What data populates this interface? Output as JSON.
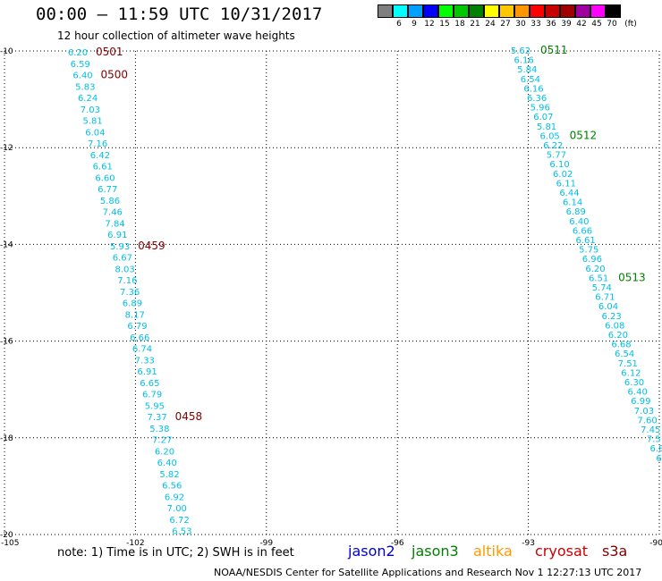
{
  "header": {
    "title": "00:00 — 11:59 UTC 10/31/2017",
    "subtitle": "12 hour collection of altimeter wave heights"
  },
  "colorbar": {
    "unit": "(ft)",
    "bins": [
      {
        "label": "3",
        "color": "#7f7f7f"
      },
      {
        "label": "6",
        "color": "#00ffff"
      },
      {
        "label": "9",
        "color": "#00a0ff"
      },
      {
        "label": "12",
        "color": "#0000ff"
      },
      {
        "label": "15",
        "color": "#00ff00"
      },
      {
        "label": "18",
        "color": "#00c800"
      },
      {
        "label": "21",
        "color": "#008200"
      },
      {
        "label": "24",
        "color": "#ffff00"
      },
      {
        "label": "27",
        "color": "#ffc800"
      },
      {
        "label": "30",
        "color": "#ff9600"
      },
      {
        "label": "33",
        "color": "#ff0000"
      },
      {
        "label": "36",
        "color": "#c80000"
      },
      {
        "label": "39",
        "color": "#a00000"
      },
      {
        "label": "42",
        "color": "#a000a0"
      },
      {
        "label": "45",
        "color": "#ff00ff"
      },
      {
        "label": "70",
        "color": "#000000"
      }
    ]
  },
  "map": {
    "lon_range": [
      -105,
      -90
    ],
    "lat_range": [
      -20,
      -10
    ],
    "lon_ticks": [
      "-105",
      "-102",
      "-99",
      "-96",
      "-93",
      "-90"
    ],
    "lat_ticks": [
      "-10",
      "-12",
      "-14",
      "-16",
      "-18",
      "-20"
    ],
    "swh_color": "#00bfe6",
    "time_color": "#800000",
    "time_color_right": "#008000",
    "track_left": {
      "values": [
        "6.20",
        "6.59",
        "6.40",
        "5.83",
        "6.24",
        "7.03",
        "5.81",
        "6.04",
        "7.16",
        "6.42",
        "6.61",
        "6.60",
        "6.77",
        "5.86",
        "7.46",
        "7.84",
        "6.91",
        "5.93",
        "6.67",
        "8.03",
        "7.16",
        "7.36",
        "6.89",
        "8.17",
        "6.79",
        "6.66",
        "6.74",
        "7.33",
        "6.91",
        "6.65",
        "6.79",
        "5.95",
        "7.37",
        "5.38",
        "7.27",
        "6.20",
        "6.40",
        "5.82",
        "6.56",
        "6.92",
        "7.00",
        "6.72",
        "6.53"
      ],
      "times": [
        {
          "label": "0501",
          "index": 0
        },
        {
          "label": "0500",
          "index": 2
        },
        {
          "label": "0459",
          "index": 17
        },
        {
          "label": "0458",
          "index": 32
        }
      ]
    },
    "track_right": {
      "values": [
        "5.62",
        "6.16",
        "5.84",
        "6.54",
        "6.16",
        "6.36",
        "5.96",
        "6.07",
        "5.81",
        "6.05",
        "6.22",
        "5.77",
        "6.10",
        "6.02",
        "6.11",
        "6.44",
        "6.14",
        "6.89",
        "6.40",
        "6.66",
        "6.61",
        "5.75",
        "6.96",
        "6.20",
        "6.51",
        "5.74",
        "6.71",
        "6.04",
        "6.23",
        "6.08",
        "6.20",
        "6.68",
        "6.54",
        "7.51",
        "6.12",
        "6.30",
        "6.40",
        "6.99",
        "7.03",
        "7.60",
        "7.45",
        "7.5",
        "6.8",
        "6."
      ],
      "times": [
        {
          "label": "0511",
          "index": 0
        },
        {
          "label": "0512",
          "index": 9
        },
        {
          "label": "0513",
          "index": 24
        }
      ]
    }
  },
  "note": "note:  1) Time is in UTC; 2) SWH is in feet",
  "legend": [
    {
      "label": "jason2",
      "color": "#0000cc"
    },
    {
      "label": "jason3",
      "color": "#008000"
    },
    {
      "label": "altika",
      "color": "#ff9900"
    },
    {
      "label": "cryosat",
      "color": "#cc0000"
    },
    {
      "label": "s3a",
      "color": "#800000"
    }
  ],
  "footer": "NOAA/NESDIS Center for Satellite Applications and Research     Nov  1 12:27:13 UTC 2017"
}
